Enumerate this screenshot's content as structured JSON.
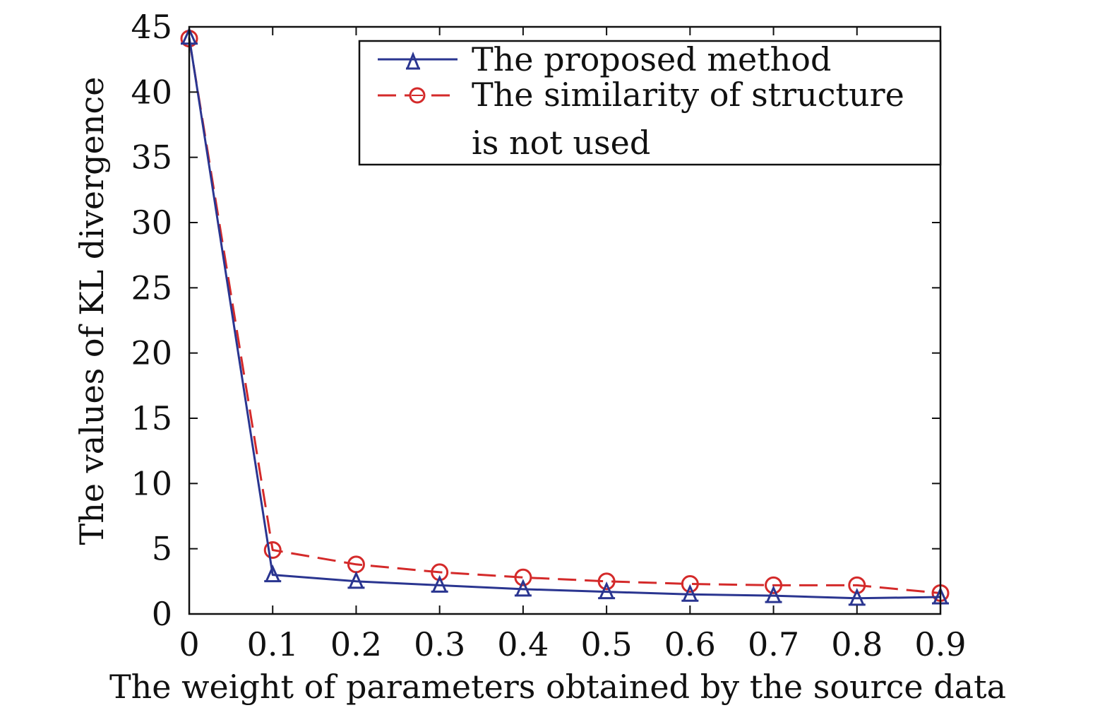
{
  "chart_data": {
    "type": "line",
    "title": "",
    "xlabel": "The weight of parameters obtained by the source data",
    "ylabel": "The values of KL divergence",
    "x": [
      0,
      0.1,
      0.2,
      0.3,
      0.4,
      0.5,
      0.6,
      0.7,
      0.8,
      0.9
    ],
    "xticks": [
      "0",
      "0.1",
      "0.2",
      "0.3",
      "0.4",
      "0.5",
      "0.6",
      "0.7",
      "0.8",
      "0.9"
    ],
    "yticks": [
      "0",
      "5",
      "10",
      "15",
      "20",
      "25",
      "30",
      "35",
      "40",
      "45"
    ],
    "xlim": [
      0,
      0.9
    ],
    "ylim": [
      0,
      45
    ],
    "grid": false,
    "legend_position": "top-right",
    "series": [
      {
        "name": "The proposed method",
        "marker": "triangle",
        "line_style": "solid",
        "color": "#2a3590",
        "values": [
          44.2,
          3.0,
          2.5,
          2.2,
          1.9,
          1.7,
          1.5,
          1.4,
          1.2,
          1.3
        ]
      },
      {
        "name": "The similarity of structure is not used",
        "marker": "circle",
        "line_style": "dashed",
        "color": "#d42a2a",
        "values": [
          44.1,
          4.9,
          3.8,
          3.2,
          2.8,
          2.5,
          2.3,
          2.2,
          2.2,
          1.6
        ]
      }
    ]
  },
  "legend": {
    "entries": [
      {
        "lines": [
          "The proposed method"
        ]
      },
      {
        "lines": [
          "The similarity of structure",
          "is not used"
        ]
      }
    ]
  }
}
